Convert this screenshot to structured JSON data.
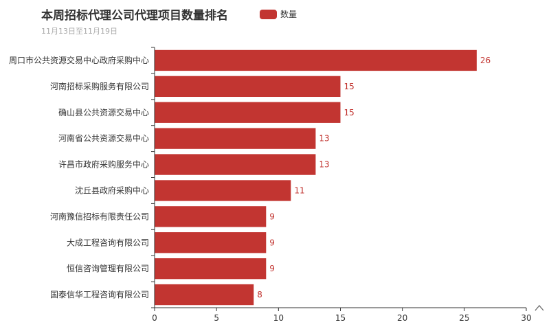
{
  "colors": {
    "bar": "#c23531",
    "axis": "#333333",
    "tick_text": "#333333",
    "label_text": "#c23531",
    "subtitle": "#aaaaaa"
  },
  "icons": {
    "axis_end": "chevron-up-icon"
  },
  "chart_data": {
    "type": "bar",
    "orientation": "horizontal",
    "title": "本周招标代理公司代理项目数量排名",
    "subtitle": "11月13日至11月19日",
    "legend": {
      "entries": [
        "数量"
      ],
      "placement": "top"
    },
    "categories": [
      "周口市公共资源交易中心政府采购中心",
      "河南招标采购服务有限公司",
      "确山县公共资源交易中心",
      "河南省公共资源交易中心",
      "许昌市政府采购服务中心",
      "沈丘县政府采购中心",
      "河南豫信招标有限责任公司",
      "大成工程咨询有限公司",
      "恒信咨询管理有限公司",
      "国泰信华工程咨询有限公司"
    ],
    "series": [
      {
        "name": "数量",
        "values": [
          26,
          15,
          15,
          13,
          13,
          11,
          9,
          9,
          9,
          8
        ]
      }
    ],
    "xlim": [
      0,
      30
    ],
    "xticks": [
      0,
      5,
      10,
      15,
      20,
      25,
      30
    ],
    "grid": false
  }
}
